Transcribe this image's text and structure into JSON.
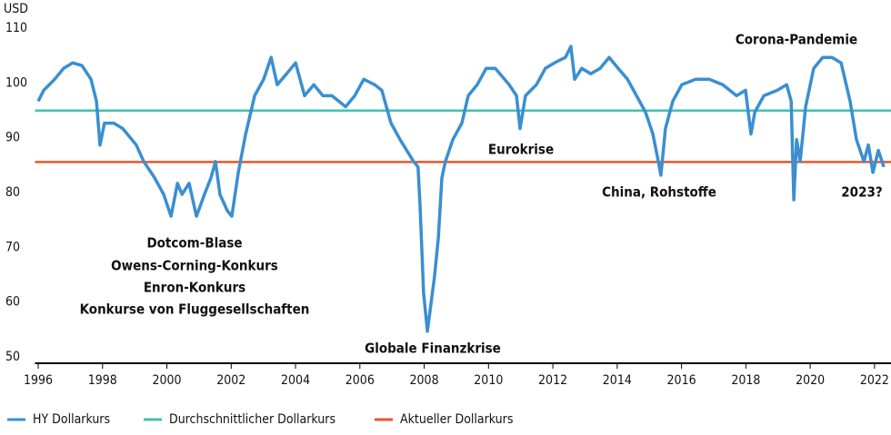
{
  "chart_data": {
    "type": "line",
    "y_label": "USD",
    "x": [
      1996.0,
      1996.17,
      1996.51,
      1996.79,
      1997.07,
      1997.36,
      1997.64,
      1997.81,
      1997.92,
      1998.06,
      1998.35,
      1998.63,
      1999.05,
      1999.28,
      1999.62,
      1999.9,
      2000.13,
      2000.33,
      2000.47,
      2000.69,
      2000.92,
      2001.17,
      2001.37,
      2001.51,
      2001.65,
      2001.88,
      2002.02,
      2002.22,
      2002.45,
      2002.73,
      2003.01,
      2003.24,
      2003.43,
      2003.72,
      2004.0,
      2004.28,
      2004.57,
      2004.85,
      2005.13,
      2005.56,
      2005.84,
      2006.12,
      2006.46,
      2006.68,
      2006.97,
      2007.25,
      2007.67,
      2007.81,
      2007.87,
      2007.98,
      2008.1,
      2008.21,
      2008.32,
      2008.44,
      2008.55,
      2008.66,
      2008.89,
      2009.17,
      2009.37,
      2009.65,
      2009.93,
      2010.21,
      2010.64,
      2010.87,
      2010.98,
      2011.15,
      2011.49,
      2011.77,
      2012.05,
      2012.39,
      2012.56,
      2012.68,
      2012.9,
      2013.18,
      2013.47,
      2013.75,
      2014.03,
      2014.32,
      2014.6,
      2014.88,
      2015.11,
      2015.28,
      2015.36,
      2015.5,
      2015.73,
      2016.01,
      2016.44,
      2016.86,
      2017.28,
      2017.71,
      2017.99,
      2018.16,
      2018.28,
      2018.56,
      2018.98,
      2019.27,
      2019.41,
      2019.49,
      2019.58,
      2019.69,
      2019.86,
      2020.11,
      2020.39,
      2020.68,
      2020.96,
      2021.24,
      2021.44,
      2021.67,
      2021.81,
      2021.95,
      2022.12,
      2022.29
    ],
    "series": [
      {
        "name": "HY Dollarkurs",
        "color": "#3a8fd1",
        "values": [
          97,
          99,
          101,
          103,
          104,
          103.5,
          101,
          97,
          89,
          93,
          93,
          92,
          89,
          86,
          83,
          80,
          76,
          82,
          80,
          82,
          76,
          80,
          83,
          86,
          80,
          77,
          76,
          84,
          91,
          98,
          101,
          105,
          100,
          102,
          104,
          98,
          100,
          98,
          98,
          96,
          98,
          101,
          100,
          99,
          93,
          90,
          86,
          85,
          78,
          62,
          55,
          60,
          65,
          72,
          83,
          86,
          90,
          93,
          98,
          100,
          103,
          103,
          100,
          98,
          92,
          98,
          100,
          103,
          104,
          105,
          107,
          101,
          103,
          102,
          103,
          105,
          103,
          101,
          98,
          95,
          91,
          86,
          83.5,
          92,
          97,
          100,
          101,
          101,
          100,
          98,
          99,
          91,
          95,
          98,
          99,
          100,
          97,
          79,
          90,
          86,
          96,
          103,
          105,
          105,
          104,
          97,
          90,
          86,
          89,
          84,
          88,
          85
        ]
      }
    ],
    "reference_lines": [
      {
        "name": "Durchschnittlicher Dollarkurs",
        "color": "#3fc1b2",
        "value": 95.3
      },
      {
        "name": "Aktueller Dollarkurs",
        "color": "#e8572a",
        "value": 85.9
      }
    ],
    "annotations": [
      "Dotcom-Blase",
      "Owens-Corning-Konkurs",
      "Enron-Konkurs",
      "Konkurse von Fluggesellschaften",
      "Globale Finanzkrise",
      "Eurokrise",
      "China, Rohstoffe",
      "Corona-Pandemie",
      "2023?"
    ],
    "xlim": [
      1995.9,
      2022.4
    ],
    "xticks": [
      1996,
      1998,
      2000,
      2002,
      2004,
      2006,
      2008,
      2010,
      2012,
      2014,
      2016,
      2018,
      2020,
      2022
    ],
    "ylim": [
      50,
      110
    ],
    "yticks": [
      50,
      60,
      70,
      80,
      90,
      100,
      110
    ]
  }
}
